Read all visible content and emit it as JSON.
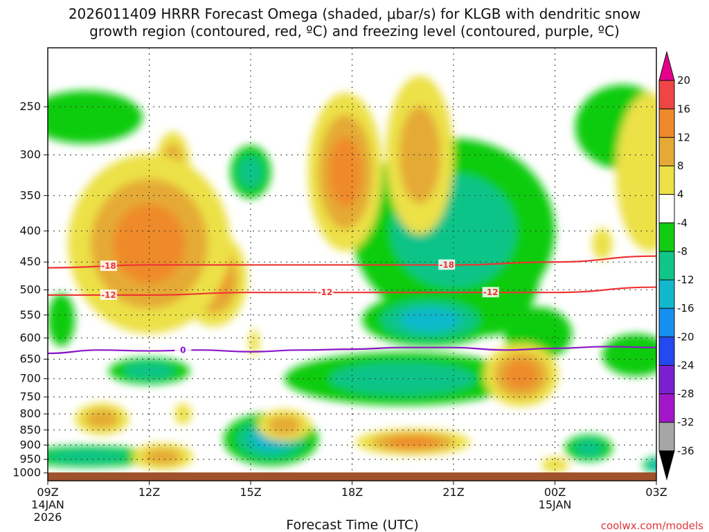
{
  "chart_data": {
    "type": "heatmap",
    "title_lines": [
      "2026011409 HRRR Forecast Omega (shaded, μbar/s) for KLGB with dendritic snow",
      "growth region (contoured, red, ºC) and freezing level (contoured, purple, ºC)"
    ],
    "xlabel": "Forecast Time (UTC)",
    "ylabel": "",
    "credit": "coolwx.com/models",
    "x_range_hours": [
      0,
      18
    ],
    "x_ticks": [
      {
        "hour": 0,
        "label": "09Z",
        "sub1": "14JAN",
        "sub2": "2026"
      },
      {
        "hour": 3,
        "label": "12Z",
        "sub1": "",
        "sub2": ""
      },
      {
        "hour": 6,
        "label": "15Z",
        "sub1": "",
        "sub2": ""
      },
      {
        "hour": 9,
        "label": "18Z",
        "sub1": "",
        "sub2": ""
      },
      {
        "hour": 12,
        "label": "21Z",
        "sub1": "",
        "sub2": ""
      },
      {
        "hour": 15,
        "label": "00Z",
        "sub1": "15JAN",
        "sub2": ""
      },
      {
        "hour": 18,
        "label": "03Z",
        "sub1": "",
        "sub2": ""
      }
    ],
    "y_axis": {
      "scale": "log",
      "top_hpa": 200,
      "bottom_hpa": 1030
    },
    "y_ticks": [
      250,
      300,
      350,
      400,
      450,
      500,
      550,
      600,
      650,
      700,
      750,
      800,
      850,
      900,
      950,
      1000
    ],
    "grid": true,
    "colorbar": {
      "levels": [
        20,
        16,
        12,
        8,
        4,
        -4,
        -8,
        -12,
        -16,
        -20,
        -24,
        -28,
        -32,
        -36
      ],
      "colors": [
        "#e6008c",
        "#f04545",
        "#ef8a2a",
        "#e5aa35",
        "#ece147",
        "#ffffff",
        "#11cc11",
        "#11c488",
        "#11b8cc",
        "#1690f0",
        "#2449ee",
        "#7b1fd0",
        "#a217c9",
        "#a6a6a6",
        "#000000"
      ]
    },
    "omega_colors": {
      "w4": "#ece147",
      "w8": "#e5aa35",
      "w12": "#ef8a2a",
      "w16": "#f04545",
      "g4": "#11cc11",
      "g8": "#11c488",
      "g12": "#11b8cc",
      "g16": "#1690f0",
      "g20": "#2449ee"
    },
    "omega_cells": [
      {
        "t": 3.0,
        "p": 420,
        "rt": 2.4,
        "rp": 0.34,
        "v": 14
      },
      {
        "t": 3.2,
        "p": 470,
        "rt": 1.0,
        "rp": 0.12,
        "v": 6
      },
      {
        "t": 3.7,
        "p": 310,
        "rt": 0.5,
        "rp": 0.12,
        "v": 8
      },
      {
        "t": 4.9,
        "p": 480,
        "rt": 1.0,
        "rp": 0.18,
        "v": 13
      },
      {
        "t": 3.4,
        "p": 940,
        "rt": 0.9,
        "rp": 0.05,
        "v": 11
      },
      {
        "t": 1.6,
        "p": 815,
        "rt": 0.8,
        "rp": 0.06,
        "v": 9
      },
      {
        "t": 7.0,
        "p": 835,
        "rt": 0.8,
        "rp": 0.06,
        "v": 11
      },
      {
        "t": 8.8,
        "p": 320,
        "rt": 1.1,
        "rp": 0.3,
        "v": 14
      },
      {
        "t": 11.0,
        "p": 300,
        "rt": 1.0,
        "rp": 0.3,
        "v": 11
      },
      {
        "t": 10.8,
        "p": 890,
        "rt": 1.7,
        "rp": 0.05,
        "v": 13
      },
      {
        "t": 14.0,
        "p": 690,
        "rt": 1.1,
        "rp": 0.12,
        "v": 13
      },
      {
        "t": 16.4,
        "p": 420,
        "rt": 0.3,
        "rp": 0.06,
        "v": 4
      },
      {
        "t": 17.8,
        "p": 320,
        "rt": 1.0,
        "rp": 0.3,
        "v": 4
      },
      {
        "t": 6.1,
        "p": 610,
        "rt": 0.15,
        "rp": 0.05,
        "v": 4
      },
      {
        "t": 15.0,
        "p": 970,
        "rt": 0.4,
        "rp": 0.03,
        "v": 4
      },
      {
        "t": 4.0,
        "p": 800,
        "rt": 0.25,
        "rp": 0.04,
        "v": 4
      },
      {
        "t": 12.0,
        "p": 400,
        "rt": 3.0,
        "rp": 0.35,
        "v": -10
      },
      {
        "t": 11.3,
        "p": 560,
        "rt": 2.0,
        "rp": 0.1,
        "v": -15
      },
      {
        "t": 13.0,
        "p": 450,
        "rt": 1.6,
        "rp": 0.28,
        "v": -9
      },
      {
        "t": 10.5,
        "p": 700,
        "rt": 3.5,
        "rp": 0.1,
        "v": -11
      },
      {
        "t": 6.6,
        "p": 880,
        "rt": 1.4,
        "rp": 0.1,
        "v": -13
      },
      {
        "t": 1.2,
        "p": 940,
        "rt": 2.0,
        "rp": 0.04,
        "v": -9
      },
      {
        "t": 3.0,
        "p": 680,
        "rt": 1.2,
        "rp": 0.05,
        "v": -11
      },
      {
        "t": 1.1,
        "p": 260,
        "rt": 1.7,
        "rp": 0.1,
        "v": -4
      },
      {
        "t": 0.4,
        "p": 560,
        "rt": 0.4,
        "rp": 0.1,
        "v": -5
      },
      {
        "t": 6.0,
        "p": 320,
        "rt": 0.6,
        "rp": 0.1,
        "v": -10
      },
      {
        "t": 17.0,
        "p": 270,
        "rt": 1.4,
        "rp": 0.16,
        "v": -5
      },
      {
        "t": 17.4,
        "p": 640,
        "rt": 1.0,
        "rp": 0.08,
        "v": -5
      },
      {
        "t": 16.0,
        "p": 910,
        "rt": 0.7,
        "rp": 0.05,
        "v": -10
      },
      {
        "t": 18.0,
        "p": 970,
        "rt": 0.4,
        "rp": 0.03,
        "v": -14
      },
      {
        "t": 14.5,
        "p": 590,
        "rt": 1.0,
        "rp": 0.1,
        "v": -6
      }
    ],
    "contours": [
      {
        "label": "-18",
        "color": "#ee3333",
        "hours": [
          0,
          3,
          6,
          9,
          12,
          15,
          18
        ],
        "p": [
          460,
          455,
          455,
          455,
          455,
          450,
          440
        ],
        "label_hours": [
          1.8,
          11.8
        ]
      },
      {
        "label": "-12",
        "color": "#ee3333",
        "hours": [
          0,
          3,
          6,
          9,
          12,
          15,
          18
        ],
        "p": [
          510,
          510,
          505,
          505,
          505,
          505,
          495
        ],
        "label_hours": [
          1.8,
          8.2,
          13.1
        ]
      },
      {
        "label": "0",
        "color": "#8c14c8",
        "hours": [
          0,
          1.5,
          3,
          4.5,
          6,
          7.5,
          9,
          10.5,
          12,
          13.5,
          15,
          16.5,
          18
        ],
        "p": [
          636,
          628,
          630,
          628,
          632,
          628,
          626,
          622,
          622,
          628,
          624,
          620,
          622
        ],
        "label_hours": [
          4.0
        ]
      }
    ],
    "ground": {
      "color": "#a0522d"
    }
  }
}
